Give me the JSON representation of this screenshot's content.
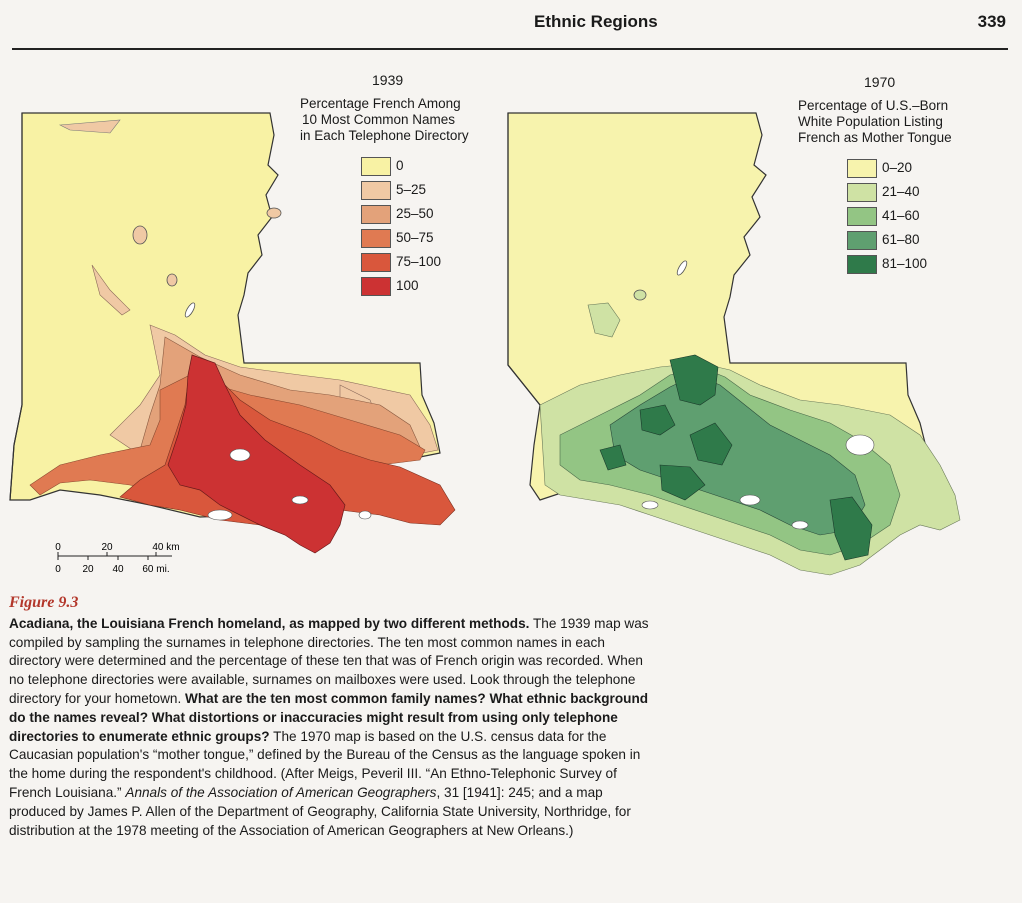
{
  "header": {
    "running_title": "Ethnic Regions",
    "page_number": "339"
  },
  "map_1939": {
    "year": "1939",
    "legend_title_lines": [
      "Percentage French Among",
      "10 Most Common Names",
      "in Each Telephone Directory"
    ],
    "legend": [
      {
        "label": "0",
        "color": "#f8f2a4"
      },
      {
        "label": "5–25",
        "color": "#f0c9a4"
      },
      {
        "label": "25–50",
        "color": "#e3a27a"
      },
      {
        "label": "50–75",
        "color": "#e07a52"
      },
      {
        "label": "75–100",
        "color": "#d9573c"
      },
      {
        "label": "100",
        "color": "#cc3233"
      }
    ]
  },
  "map_1970": {
    "year": "1970",
    "legend_title_lines": [
      "Percentage of U.S.–Born",
      "White Population Listing",
      "French as Mother Tongue"
    ],
    "legend": [
      {
        "label": "0–20",
        "color": "#f7f3ad"
      },
      {
        "label": "21–40",
        "color": "#cfe2a4"
      },
      {
        "label": "41–60",
        "color": "#93c584"
      },
      {
        "label": "61–80",
        "color": "#5f9f70"
      },
      {
        "label": "81–100",
        "color": "#2f7a4a"
      }
    ]
  },
  "scale_bar": {
    "km_labels": [
      "0",
      "20",
      "40 km"
    ],
    "mi_labels": [
      "0",
      "20",
      "40",
      "60 mi."
    ]
  },
  "caption": {
    "figure_label": "Figure 9.3",
    "lead_bold": "Acadiana, the Louisiana French homeland, as mapped by two different methods.",
    "text_1": " The 1939 map was compiled by sampling the surnames in telephone directories. The ten most common names in each directory were determined and the percentage of these ten that was of French origin was recorded. When no telephone directories were available, surnames on mailboxes were used. Look through the telephone directory for your hometown. ",
    "question_bold": "What are the ten most common family names? What ethnic background do the names reveal? What distortions or inaccuracies might result from using only telephone directories to enumerate ethnic groups?",
    "text_2": " The 1970 map is based on the U.S. census data for the Caucasian population's “mother tongue,” defined by the Bureau of the Census as the language spoken in the home during the respondent's childhood. (After Meigs, Peveril III. “An Ethno-Telephonic Survey of French Louisiana.” ",
    "citation_italic": "Annals of the Association of American Geographers",
    "text_3": ", 31 [1941]: 245; and a map produced by James P. Allen of the Department of Geography, California State University, Northridge, for distribution at the 1978 meeting of the Association of American Geographers at New Orleans.)"
  }
}
